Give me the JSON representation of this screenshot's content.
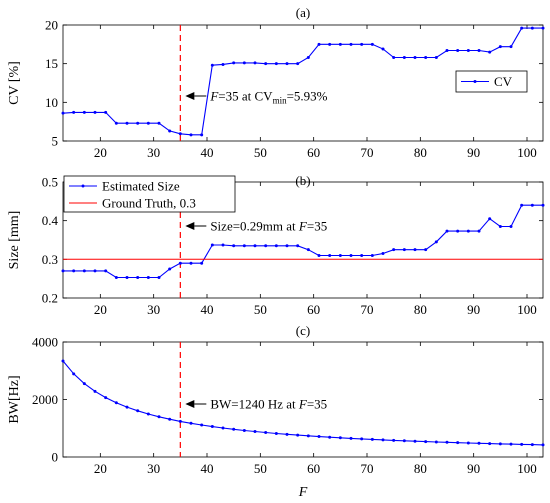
{
  "chart_data": [
    {
      "type": "line",
      "title": "(a)",
      "xlabel": "",
      "ylabel": "CV [%]",
      "xlim": [
        13,
        103
      ],
      "ylim": [
        5,
        20
      ],
      "xticks": [
        20,
        30,
        40,
        50,
        60,
        70,
        80,
        90,
        100
      ],
      "yticks": [
        5,
        10,
        15,
        20
      ],
      "series": [
        {
          "name": "CV",
          "color": "#0000ff",
          "x": [
            13,
            15,
            17,
            19,
            21,
            23,
            25,
            27,
            29,
            31,
            33,
            35,
            37,
            39,
            41,
            43,
            45,
            47,
            49,
            51,
            53,
            55,
            57,
            59,
            61,
            63,
            65,
            67,
            69,
            71,
            73,
            75,
            77,
            79,
            81,
            83,
            85,
            87,
            89,
            91,
            93,
            95,
            97,
            99,
            101,
            103
          ],
          "y": [
            8.6,
            8.7,
            8.7,
            8.7,
            8.7,
            7.3,
            7.3,
            7.3,
            7.3,
            7.3,
            6.3,
            5.93,
            5.8,
            5.8,
            14.8,
            14.9,
            15.1,
            15.1,
            15.1,
            15.0,
            15.0,
            15.0,
            15.0,
            15.8,
            17.5,
            17.5,
            17.5,
            17.5,
            17.5,
            17.5,
            16.9,
            15.8,
            15.8,
            15.8,
            15.8,
            15.8,
            16.7,
            16.7,
            16.7,
            16.7,
            16.5,
            17.2,
            17.2,
            19.6,
            19.6,
            19.6
          ]
        }
      ],
      "vline": {
        "x": 35,
        "color": "#ff0000"
      },
      "annotation": {
        "prefix": "F",
        "text": "=35 at CV",
        "sub": "min",
        "suffix": "=5.93%"
      },
      "legend": {
        "placement": "right",
        "entries": [
          "CV"
        ]
      },
      "grid": false
    },
    {
      "type": "line",
      "title": "(b)",
      "xlabel": "",
      "ylabel": "Size [mm]",
      "xlim": [
        13,
        103
      ],
      "ylim": [
        0.2,
        0.5
      ],
      "xticks": [
        20,
        30,
        40,
        50,
        60,
        70,
        80,
        90,
        100
      ],
      "yticks": [
        "0.2",
        "0.3",
        "0.4",
        "0.5"
      ],
      "series": [
        {
          "name": "Estimated Size",
          "color": "#0000ff",
          "x": [
            13,
            15,
            17,
            19,
            21,
            23,
            25,
            27,
            29,
            31,
            33,
            35,
            37,
            39,
            41,
            43,
            45,
            47,
            49,
            51,
            53,
            55,
            57,
            59,
            61,
            63,
            65,
            67,
            69,
            71,
            73,
            75,
            77,
            79,
            81,
            83,
            85,
            87,
            89,
            91,
            93,
            95,
            97,
            99,
            101,
            103
          ],
          "y": [
            0.27,
            0.27,
            0.27,
            0.27,
            0.27,
            0.253,
            0.253,
            0.253,
            0.253,
            0.253,
            0.275,
            0.29,
            0.29,
            0.29,
            0.337,
            0.337,
            0.335,
            0.335,
            0.335,
            0.335,
            0.335,
            0.335,
            0.335,
            0.325,
            0.31,
            0.31,
            0.31,
            0.31,
            0.31,
            0.31,
            0.315,
            0.325,
            0.325,
            0.325,
            0.325,
            0.345,
            0.373,
            0.373,
            0.373,
            0.373,
            0.405,
            0.385,
            0.385,
            0.44,
            0.44,
            0.44
          ]
        },
        {
          "name": "Ground Truth, 0.3",
          "color": "#ff0000",
          "x": [
            13,
            103
          ],
          "y": [
            0.3,
            0.3
          ]
        }
      ],
      "vline": {
        "x": 35,
        "color": "#ff0000"
      },
      "annotation": {
        "text": "Size=0.29mm at ",
        "prefix": "F",
        "suffix": "=35"
      },
      "legend": {
        "placement": "top-left",
        "entries": [
          "Estimated Size",
          "Ground Truth, 0.3"
        ]
      },
      "grid": false
    },
    {
      "type": "line",
      "title": "(c)",
      "xlabel": "F",
      "ylabel": "BW[Hz]",
      "xlim": [
        13,
        103
      ],
      "ylim": [
        0,
        4000
      ],
      "xticks": [
        20,
        30,
        40,
        50,
        60,
        70,
        80,
        90,
        100
      ],
      "yticks": [
        0,
        2000,
        4000
      ],
      "series": [
        {
          "name": "BW",
          "color": "#0000ff",
          "x": [
            13,
            15,
            17,
            19,
            21,
            23,
            25,
            27,
            29,
            31,
            33,
            35,
            37,
            39,
            41,
            43,
            45,
            47,
            49,
            51,
            53,
            55,
            57,
            59,
            61,
            63,
            65,
            67,
            69,
            71,
            73,
            75,
            77,
            79,
            81,
            83,
            85,
            87,
            89,
            91,
            93,
            95,
            97,
            99,
            101,
            103
          ],
          "y": [
            3338,
            2893,
            2553,
            2284,
            2066,
            1887,
            1736,
            1607,
            1496,
            1400,
            1315,
            1240,
            1173,
            1113,
            1059,
            1009,
            964,
            923,
            886,
            851,
            819,
            789,
            761,
            736,
            711,
            689,
            668,
            648,
            629,
            611,
            595,
            579,
            564,
            549,
            536,
            523,
            511,
            499,
            488,
            477,
            467,
            457,
            447,
            438,
            430,
            421
          ]
        }
      ],
      "vline": {
        "x": 35,
        "color": "#ff0000"
      },
      "annotation": {
        "text": "BW=1240 Hz at ",
        "prefix": "F",
        "suffix": "=35"
      },
      "legend": null,
      "grid": false
    }
  ]
}
